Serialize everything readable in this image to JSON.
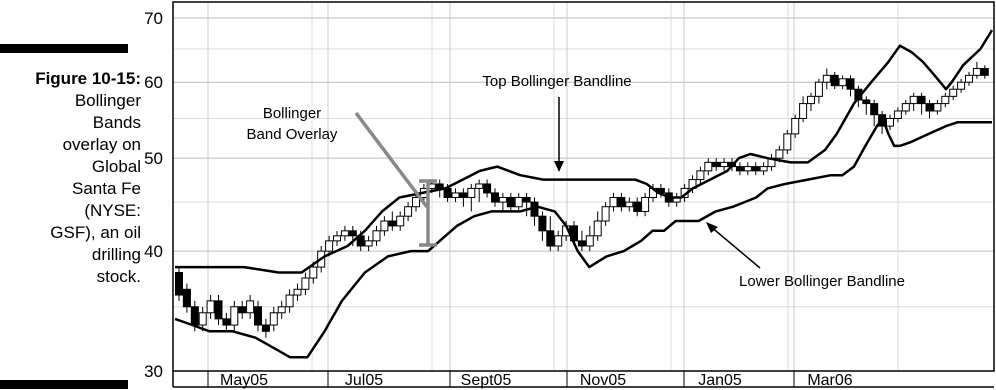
{
  "caption": {
    "figure_label": "Figure 10-15:",
    "lines": [
      "Bollinger",
      "Bands",
      "overlay on",
      "Global",
      "Santa Fe",
      "(NYSE:",
      "GSF), an oil",
      "drilling",
      "stock."
    ]
  },
  "chart_data": {
    "type": "candlestick",
    "title": "",
    "xlabel": "",
    "ylabel": "",
    "y_scale": "log",
    "ylim": [
      30,
      70
    ],
    "y_ticks": [
      30,
      40,
      50,
      60,
      70
    ],
    "x_ticks": [
      "May05",
      "Jul05",
      "Sept05",
      "Nov05",
      "Jan05",
      "Mar06"
    ],
    "grid": true,
    "annotations": [
      "Bollinger Band Overlay",
      "Top Bollinger Bandline",
      "Lower Bollinger Bandline"
    ],
    "series": [
      {
        "name": "Top Bollinger Bandline",
        "points": [
          [
            0,
            38.5
          ],
          [
            5,
            38.5
          ],
          [
            12,
            38.5
          ],
          [
            18,
            38
          ],
          [
            22,
            38
          ],
          [
            26,
            39.5
          ],
          [
            30,
            40.5
          ],
          [
            33,
            42
          ],
          [
            36,
            44
          ],
          [
            39,
            45.5
          ],
          [
            43,
            46
          ],
          [
            47,
            46.5
          ],
          [
            50,
            47.5
          ],
          [
            53,
            48.5
          ],
          [
            56,
            49
          ],
          [
            60,
            48
          ],
          [
            64,
            47.5
          ],
          [
            68,
            47.5
          ],
          [
            72,
            47.5
          ],
          [
            76,
            47.5
          ],
          [
            80,
            47.5
          ],
          [
            82,
            47
          ],
          [
            84,
            46
          ],
          [
            86,
            45.5
          ],
          [
            88,
            45.5
          ],
          [
            90,
            46.5
          ],
          [
            93,
            47.5
          ],
          [
            96,
            48.5
          ],
          [
            98,
            50
          ],
          [
            100,
            50.5
          ],
          [
            103,
            50
          ],
          [
            107,
            49.5
          ],
          [
            110,
            49.5
          ],
          [
            113,
            51
          ],
          [
            115,
            53
          ],
          [
            118,
            57
          ],
          [
            121,
            60
          ],
          [
            124,
            63
          ],
          [
            126,
            65.5
          ],
          [
            128,
            64.5
          ],
          [
            130,
            63
          ],
          [
            132,
            61
          ],
          [
            134,
            59
          ],
          [
            135,
            60
          ],
          [
            137,
            62.5
          ],
          [
            140,
            65
          ],
          [
            142,
            68
          ]
        ]
      },
      {
        "name": "Lower Bollinger Bandline",
        "points": [
          [
            0,
            34
          ],
          [
            3,
            33.5
          ],
          [
            6,
            33
          ],
          [
            10,
            33
          ],
          [
            14,
            32.5
          ],
          [
            18,
            31.5
          ],
          [
            20,
            31
          ],
          [
            23,
            31
          ],
          [
            26,
            33
          ],
          [
            29,
            35.5
          ],
          [
            33,
            38
          ],
          [
            37,
            39.5
          ],
          [
            41,
            40
          ],
          [
            44,
            40
          ],
          [
            46,
            41
          ],
          [
            49,
            42.5
          ],
          [
            52,
            43.5
          ],
          [
            55,
            44
          ],
          [
            58,
            44
          ],
          [
            60,
            44
          ],
          [
            63,
            44.5
          ],
          [
            66,
            44
          ],
          [
            68,
            42.5
          ],
          [
            70,
            40
          ],
          [
            72,
            38.5
          ],
          [
            75,
            39.5
          ],
          [
            78,
            40
          ],
          [
            81,
            41
          ],
          [
            83,
            42
          ],
          [
            85,
            42
          ],
          [
            87,
            43
          ],
          [
            91,
            43
          ],
          [
            94,
            44
          ],
          [
            97,
            44.5
          ],
          [
            99,
            45
          ],
          [
            101,
            45.5
          ],
          [
            103,
            46.5
          ],
          [
            106,
            47
          ],
          [
            110,
            47.5
          ],
          [
            114,
            48
          ],
          [
            116,
            48
          ],
          [
            118,
            49
          ],
          [
            120,
            51.5
          ],
          [
            122,
            54
          ],
          [
            123,
            55
          ],
          [
            124,
            53
          ],
          [
            125,
            51.5
          ],
          [
            126,
            51.5
          ],
          [
            128,
            52
          ],
          [
            131,
            53
          ],
          [
            134,
            54
          ],
          [
            136,
            54.5
          ],
          [
            142,
            54.5
          ]
        ]
      }
    ],
    "candles": [
      [
        0,
        38,
        36,
        38.5,
        35.5
      ],
      [
        1,
        36.5,
        35,
        37,
        34.5
      ],
      [
        2,
        35,
        33.5,
        35.5,
        33
      ],
      [
        3,
        33.5,
        34.5,
        35,
        33
      ],
      [
        4,
        34.5,
        35.5,
        36,
        34
      ],
      [
        5,
        35.5,
        34,
        36,
        33.5
      ],
      [
        6,
        34,
        33.5,
        34.5,
        33
      ],
      [
        7,
        33.5,
        35,
        35.5,
        33
      ],
      [
        8,
        35,
        34.5,
        35.5,
        34
      ],
      [
        9,
        34.5,
        35.5,
        36,
        34
      ],
      [
        10,
        35,
        33.5,
        35.5,
        33
      ],
      [
        11,
        33.5,
        33,
        34,
        32.5
      ],
      [
        12,
        33.5,
        34.5,
        35,
        33
      ],
      [
        13,
        34.5,
        35,
        35.5,
        34
      ],
      [
        14,
        35,
        36,
        36.5,
        34.5
      ],
      [
        15,
        36,
        36.5,
        37,
        35.5
      ],
      [
        16,
        36.5,
        37.5,
        38,
        36
      ],
      [
        17,
        37.5,
        38.5,
        39,
        37
      ],
      [
        18,
        38.5,
        40,
        40.5,
        38
      ],
      [
        19,
        40,
        41,
        41.5,
        39.5
      ],
      [
        20,
        41,
        41.5,
        42,
        40.5
      ],
      [
        21,
        41.5,
        42,
        42.5,
        41
      ],
      [
        22,
        42,
        41.5,
        42.5,
        40.5
      ],
      [
        23,
        41.5,
        40.5,
        42,
        40
      ],
      [
        24,
        40.5,
        41,
        41.5,
        40
      ],
      [
        25,
        41,
        42,
        42.5,
        40.5
      ],
      [
        26,
        42,
        43,
        43.5,
        41.5
      ],
      [
        27,
        43,
        42.5,
        44,
        42
      ],
      [
        28,
        42.5,
        43.5,
        44,
        42
      ],
      [
        29,
        43.5,
        44.5,
        45,
        43
      ],
      [
        30,
        44.5,
        45.5,
        46,
        44
      ],
      [
        31,
        45.5,
        46.5,
        47,
        45
      ],
      [
        32,
        46.5,
        47,
        47.5,
        46
      ],
      [
        33,
        47,
        46.5,
        47.5,
        45.5
      ],
      [
        34,
        46.5,
        45.5,
        47,
        45
      ],
      [
        35,
        45.5,
        46,
        46.5,
        45
      ],
      [
        36,
        46,
        45.5,
        46.5,
        44.5
      ],
      [
        37,
        45.5,
        46.5,
        47,
        44
      ],
      [
        38,
        46.5,
        47,
        47.5,
        45
      ],
      [
        39,
        47,
        46,
        47.5,
        45.5
      ],
      [
        40,
        46,
        45,
        46.5,
        44.5
      ],
      [
        41,
        45,
        45.5,
        46,
        44
      ],
      [
        42,
        45.5,
        44.5,
        46,
        44
      ],
      [
        43,
        44.5,
        45.5,
        46,
        44
      ],
      [
        44,
        45.5,
        45,
        46,
        43.5
      ],
      [
        45,
        45,
        43.5,
        45.5,
        42.5
      ],
      [
        46,
        43.5,
        42,
        44,
        41
      ],
      [
        47,
        42,
        40.5,
        43.5,
        40
      ],
      [
        48,
        40.5,
        41.5,
        42,
        40
      ],
      [
        49,
        41.5,
        42.5,
        43,
        41
      ],
      [
        50,
        42.5,
        41,
        43,
        40.5
      ],
      [
        51,
        41,
        40.5,
        42,
        40
      ],
      [
        52,
        40.5,
        41.5,
        42.5,
        40
      ],
      [
        53,
        41.5,
        43,
        44,
        41
      ],
      [
        54,
        43,
        44.5,
        45,
        42.5
      ],
      [
        55,
        44.5,
        45.5,
        46,
        44
      ],
      [
        56,
        45.5,
        44.5,
        46,
        44
      ],
      [
        57,
        44.5,
        45,
        45.5,
        44
      ],
      [
        58,
        45,
        44,
        45.5,
        43.5
      ],
      [
        59,
        44,
        45.5,
        46,
        43.5
      ],
      [
        60,
        45.5,
        46.5,
        47,
        45
      ],
      [
        61,
        46.5,
        46,
        47,
        45.5
      ],
      [
        62,
        46,
        45,
        46.5,
        44.5
      ],
      [
        63,
        45,
        45.5,
        46,
        44.5
      ],
      [
        64,
        45.5,
        46.5,
        47,
        45
      ],
      [
        65,
        46.5,
        47.5,
        48,
        46
      ],
      [
        66,
        47.5,
        48.5,
        49,
        47
      ],
      [
        67,
        48.5,
        49.5,
        50,
        48
      ],
      [
        68,
        49.5,
        49,
        50,
        48.5
      ],
      [
        69,
        49,
        49.5,
        50,
        48.5
      ],
      [
        70,
        49.5,
        49,
        50,
        48.5
      ],
      [
        71,
        49,
        48.5,
        49.5,
        48
      ],
      [
        72,
        48.5,
        49,
        49.5,
        48
      ],
      [
        73,
        49,
        48.5,
        49.5,
        48
      ],
      [
        74,
        48.5,
        49,
        49.5,
        48
      ],
      [
        75,
        49,
        50,
        50.5,
        48.5
      ],
      [
        76,
        50,
        51,
        51.5,
        49.5
      ],
      [
        77,
        51,
        53,
        53.5,
        50.5
      ],
      [
        78,
        53,
        55,
        55.5,
        52.5
      ],
      [
        79,
        55,
        57,
        58,
        54.5
      ],
      [
        80,
        57,
        58,
        58.5,
        56
      ],
      [
        81,
        58,
        60,
        60.5,
        57
      ],
      [
        82,
        60,
        61,
        62,
        59
      ],
      [
        83,
        61,
        59.5,
        61.5,
        59
      ],
      [
        84,
        59.5,
        60.5,
        61,
        59
      ],
      [
        85,
        60.5,
        59,
        61,
        58
      ],
      [
        86,
        59,
        57.5,
        59.5,
        56.5
      ],
      [
        87,
        57.5,
        57,
        58,
        55.5
      ],
      [
        88,
        57,
        55.5,
        57.5,
        54
      ],
      [
        89,
        55.5,
        54,
        56,
        53
      ],
      [
        90,
        54,
        55,
        55.5,
        53.5
      ],
      [
        91,
        55,
        56,
        56.5,
        54.5
      ],
      [
        92,
        56,
        57,
        57.5,
        55.5
      ],
      [
        93,
        57,
        58,
        58.5,
        56
      ],
      [
        94,
        58,
        57,
        58.5,
        55.5
      ],
      [
        95,
        57,
        56,
        57.5,
        55
      ],
      [
        96,
        56,
        57,
        57.5,
        55.5
      ],
      [
        97,
        57,
        58,
        58.5,
        56.5
      ],
      [
        98,
        58,
        59,
        59.5,
        57.5
      ],
      [
        99,
        59,
        60,
        60.5,
        58.5
      ],
      [
        100,
        60,
        61,
        61.5,
        59.5
      ],
      [
        101,
        61,
        62,
        63,
        60.5
      ],
      [
        102,
        62,
        61,
        62.5,
        60.5
      ]
    ]
  }
}
